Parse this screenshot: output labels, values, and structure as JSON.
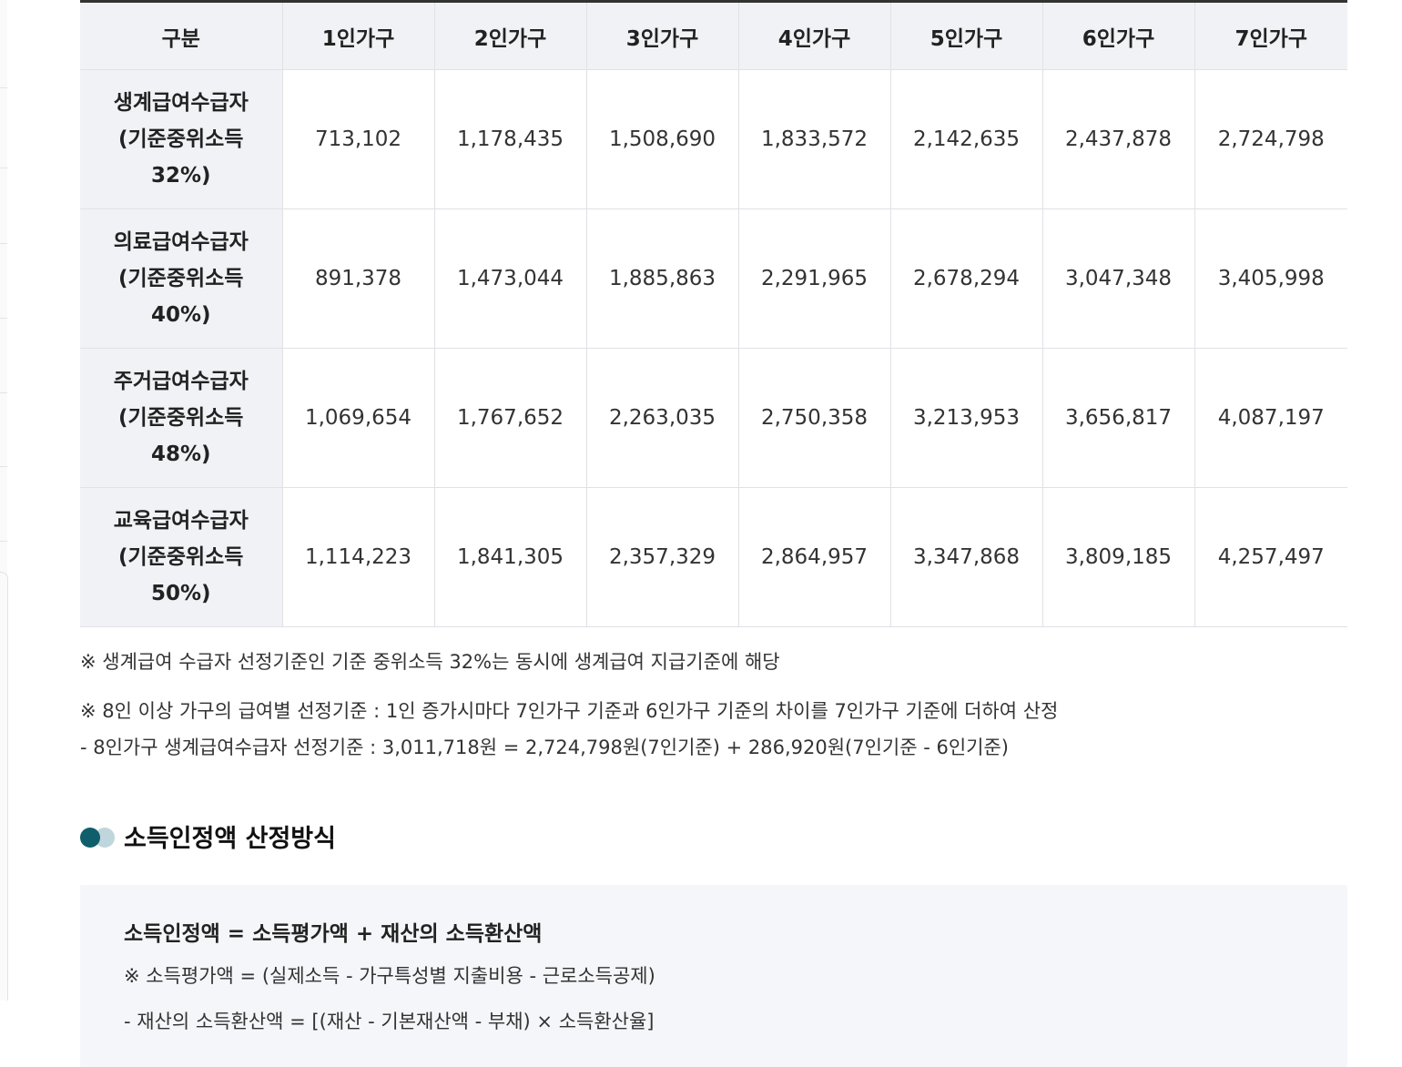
{
  "table": {
    "header": [
      "구분",
      "1인가구",
      "2인가구",
      "3인가구",
      "4인가구",
      "5인가구",
      "6인가구",
      "7인가구"
    ],
    "rows": [
      {
        "label": [
          "생계급여수급자",
          "(기준중위소득",
          "32%)"
        ],
        "values": [
          "713,102",
          "1,178,435",
          "1,508,690",
          "1,833,572",
          "2,142,635",
          "2,437,878",
          "2,724,798"
        ]
      },
      {
        "label": [
          "의료급여수급자",
          "(기준중위소득",
          "40%)"
        ],
        "values": [
          "891,378",
          "1,473,044",
          "1,885,863",
          "2,291,965",
          "2,678,294",
          "3,047,348",
          "3,405,998"
        ]
      },
      {
        "label": [
          "주거급여수급자",
          "(기준중위소득",
          "48%)"
        ],
        "values": [
          "1,069,654",
          "1,767,652",
          "2,263,035",
          "2,750,358",
          "3,213,953",
          "3,656,817",
          "4,087,197"
        ]
      },
      {
        "label": [
          "교육급여수급자",
          "(기준중위소득",
          "50%)"
        ],
        "values": [
          "1,114,223",
          "1,841,305",
          "2,357,329",
          "2,864,957",
          "3,347,868",
          "3,809,185",
          "4,257,497"
        ]
      }
    ]
  },
  "notes": {
    "n1": "※ 생계급여 수급자 선정기준인 기준 중위소득 32%는 동시에 생계급여 지급기준에 해당",
    "n2": "※ 8인 이상 가구의 급여별 선정기준 : 1인 증가시마다 7인가구 기준과 6인가구 기준의 차이를 7인가구 기준에 더하여 산정",
    "n3": "- 8인가구 생계급여수급자 선정기준 : 3,011,718원 = 2,724,798원(7인기준) + 286,920원(7인기준 - 6인기준)"
  },
  "section": {
    "title": "소득인정액 산정방식"
  },
  "formula": {
    "main": "소득인정액 = 소득평가액 + 재산의 소득환산액",
    "note": "※ 소득평가액 = (실제소득 - 가구특성별 지출비용 - 근로소득공제)",
    "note2": "- 재산의 소득환산액 = [(재산 - 기본재산액 - 부채) × 소득환산율]"
  },
  "colors": {
    "header_bg": "#f1f2f6",
    "accent_dark": "#0e5f6b",
    "accent_light": "#bfd6dc",
    "formula_bg": "#f5f6f9"
  }
}
